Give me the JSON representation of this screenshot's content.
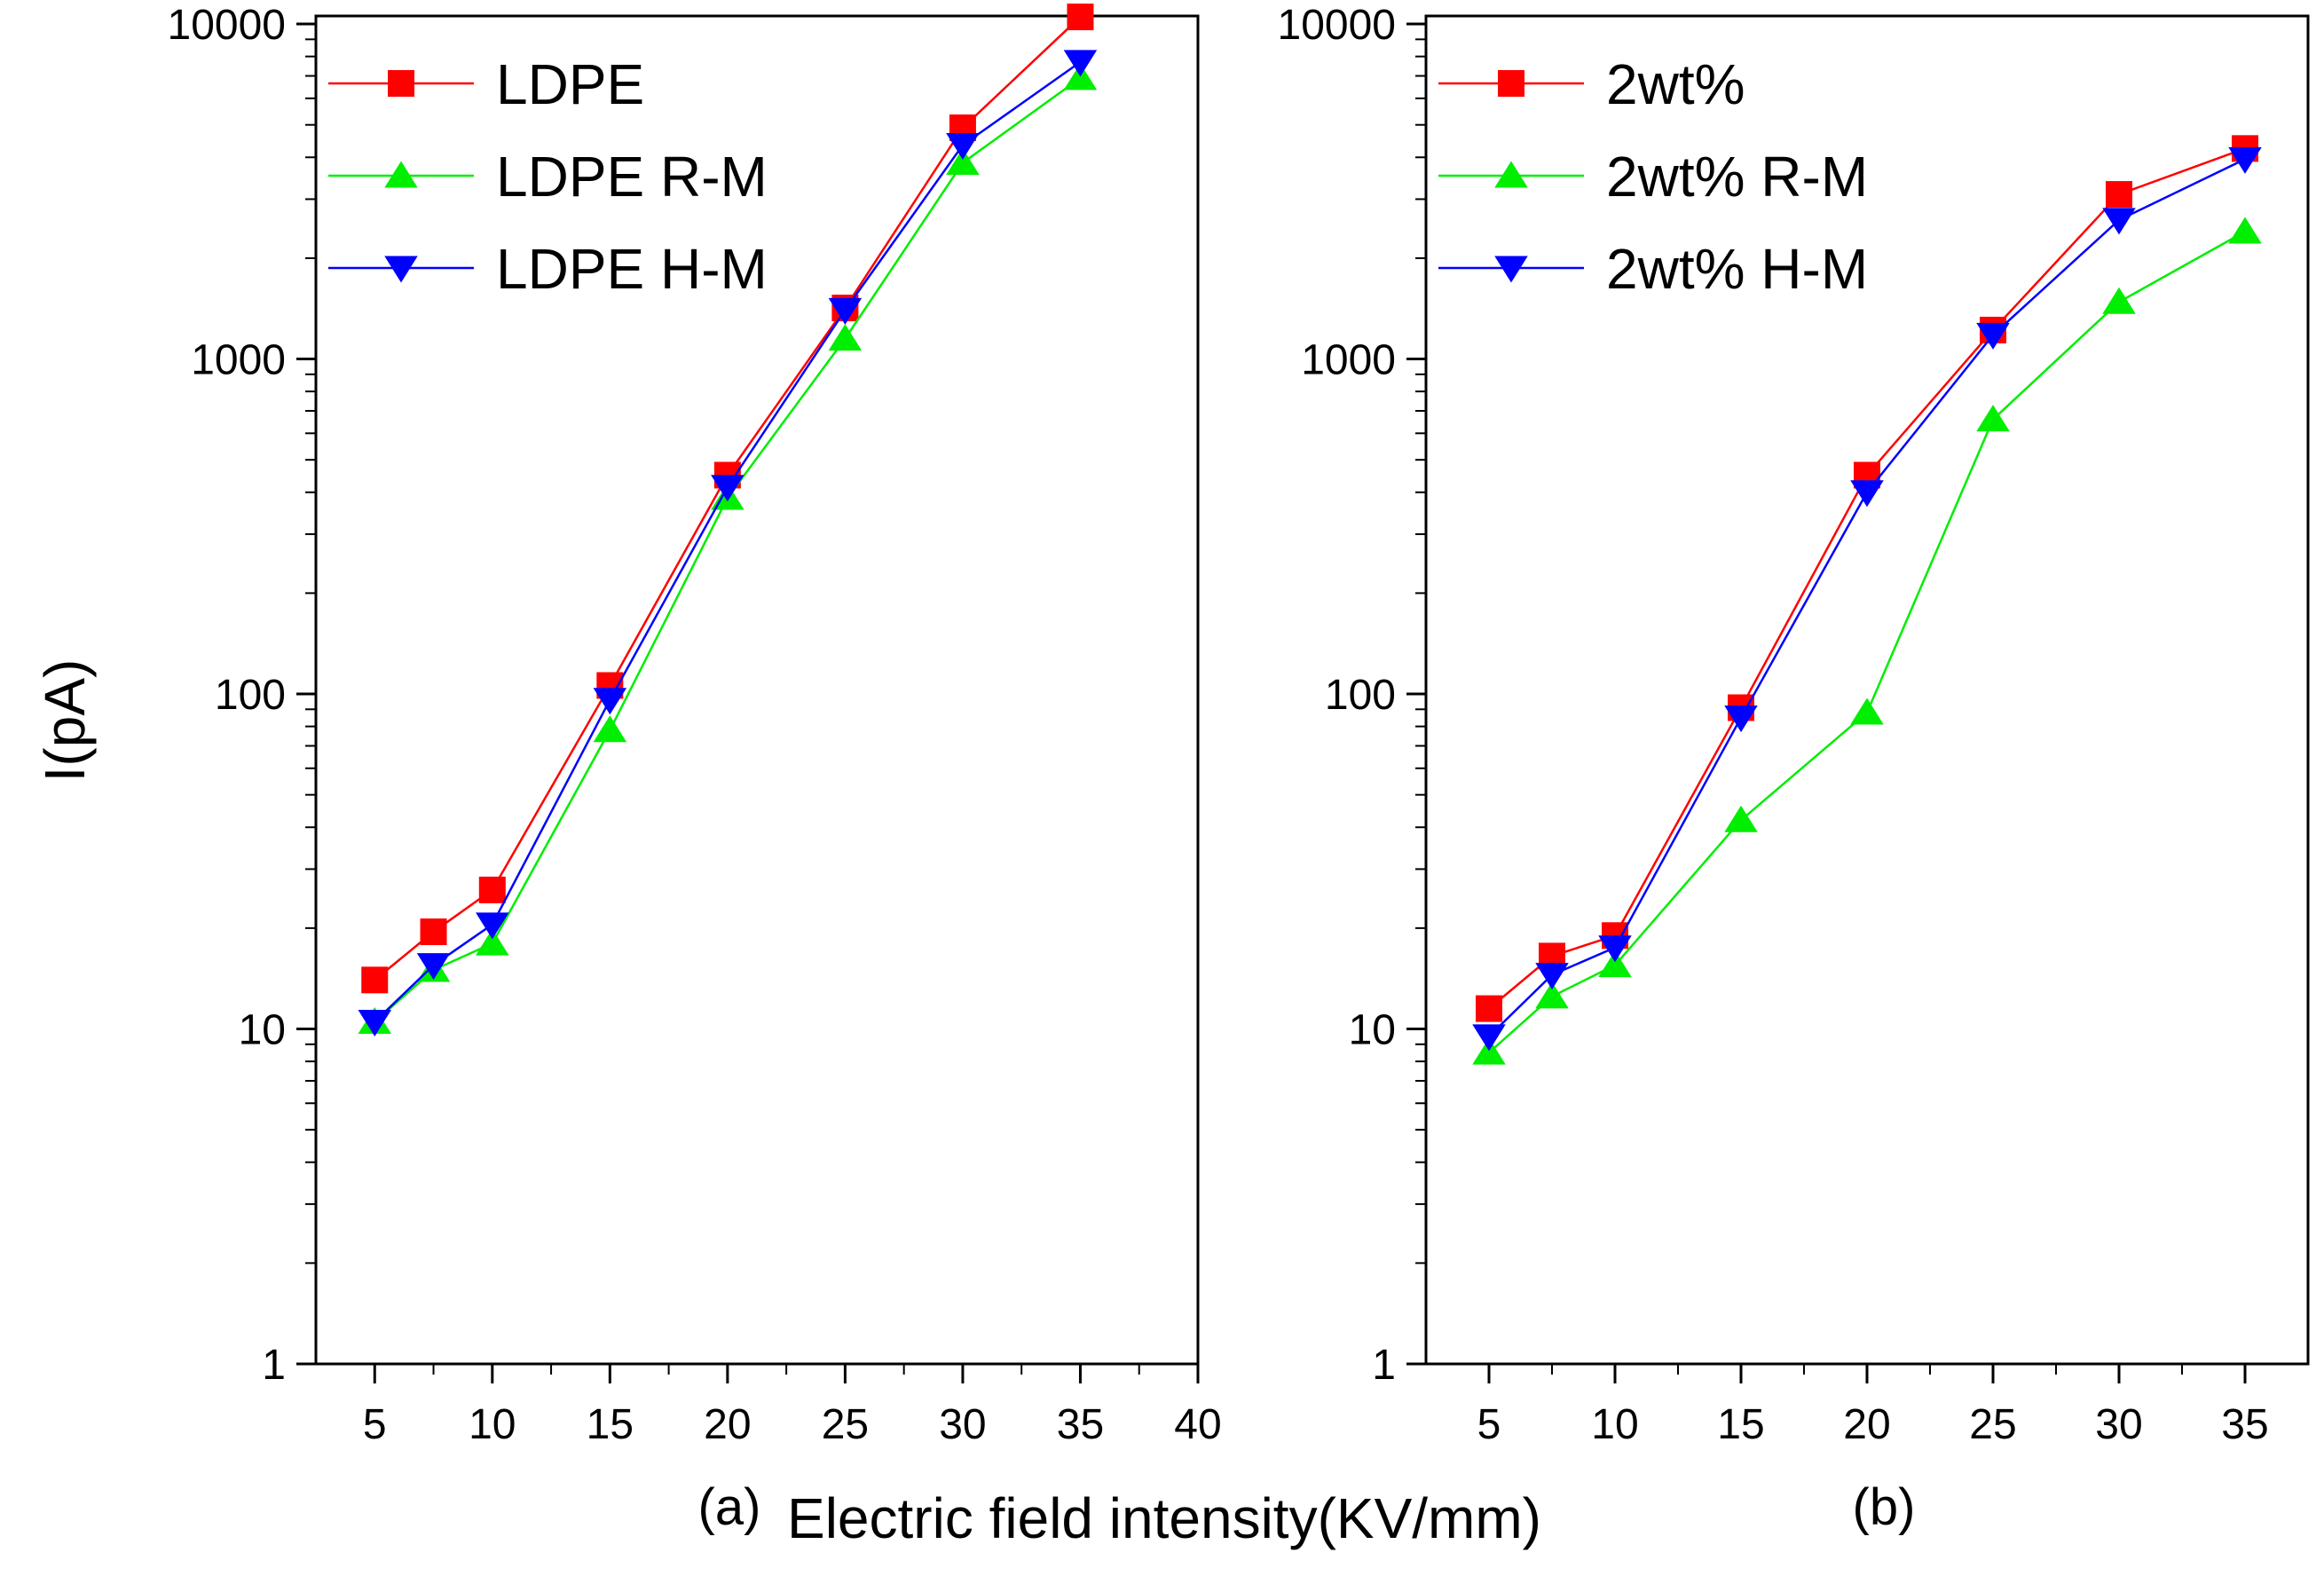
{
  "figure": {
    "ylabel": "I(pA)",
    "xlabel": "Electric field intensity(KV/mm)"
  },
  "chart_data": [
    {
      "type": "line",
      "panel_label": "(a)",
      "y_scale": "log",
      "ylim": [
        1,
        10000
      ],
      "yticks": [
        1,
        10,
        100,
        1000,
        10000
      ],
      "ytick_labels": [
        "1",
        "10",
        "100",
        "1000",
        "10000"
      ],
      "xlim": [
        2.5,
        40
      ],
      "xticks": [
        5,
        10,
        15,
        20,
        25,
        30,
        35,
        40
      ],
      "xtick_labels": [
        "5",
        "10",
        "15",
        "20",
        "25",
        "30",
        "35",
        "40"
      ],
      "x": [
        5,
        7.5,
        10,
        15,
        20,
        25,
        30,
        35
      ],
      "legend_position": "top-left",
      "series": [
        {
          "name": "LDPE",
          "color": "#ff0000",
          "marker": "square",
          "values": [
            14,
            19.5,
            26,
            106,
            450,
            1420,
            4900,
            10500
          ]
        },
        {
          "name": "LDPE R-M",
          "color": "#00ee00",
          "marker": "triangle-up",
          "values": [
            10.5,
            15,
            18,
            78,
            385,
            1150,
            3850,
            6900
          ]
        },
        {
          "name": "LDPE H-M",
          "color": "#0000ff",
          "marker": "triangle-down",
          "values": [
            10.5,
            15.5,
            20.5,
            96,
            415,
            1400,
            4350,
            7700
          ]
        }
      ]
    },
    {
      "type": "line",
      "panel_label": "(b)",
      "y_scale": "log",
      "ylim": [
        1,
        10000
      ],
      "yticks": [
        1,
        10,
        100,
        1000,
        10000
      ],
      "ytick_labels": [
        "1",
        "10",
        "100",
        "1000",
        "10000"
      ],
      "xlim": [
        2.5,
        37.5
      ],
      "xticks": [
        5,
        10,
        15,
        20,
        25,
        30,
        35
      ],
      "xtick_labels": [
        "5",
        "10",
        "15",
        "20",
        "25",
        "30",
        "35"
      ],
      "x": [
        5,
        7.5,
        10,
        15,
        20,
        25,
        30,
        35
      ],
      "legend_position": "top-left",
      "series": [
        {
          "name": "2wt%",
          "color": "#ff0000",
          "marker": "square",
          "values": [
            11.5,
            16.5,
            19,
            91,
            450,
            1220,
            3100,
            4250
          ]
        },
        {
          "name": "2wt% R-M",
          "color": "#00ee00",
          "marker": "triangle-up",
          "values": [
            8.5,
            12.5,
            15.5,
            42,
            88,
            660,
            1480,
            2400
          ]
        },
        {
          "name": "2wt% H-M",
          "color": "#0000ff",
          "marker": "triangle-down",
          "values": [
            9.5,
            14.5,
            17.5,
            85,
            400,
            1180,
            2600,
            3950
          ]
        }
      ]
    }
  ]
}
